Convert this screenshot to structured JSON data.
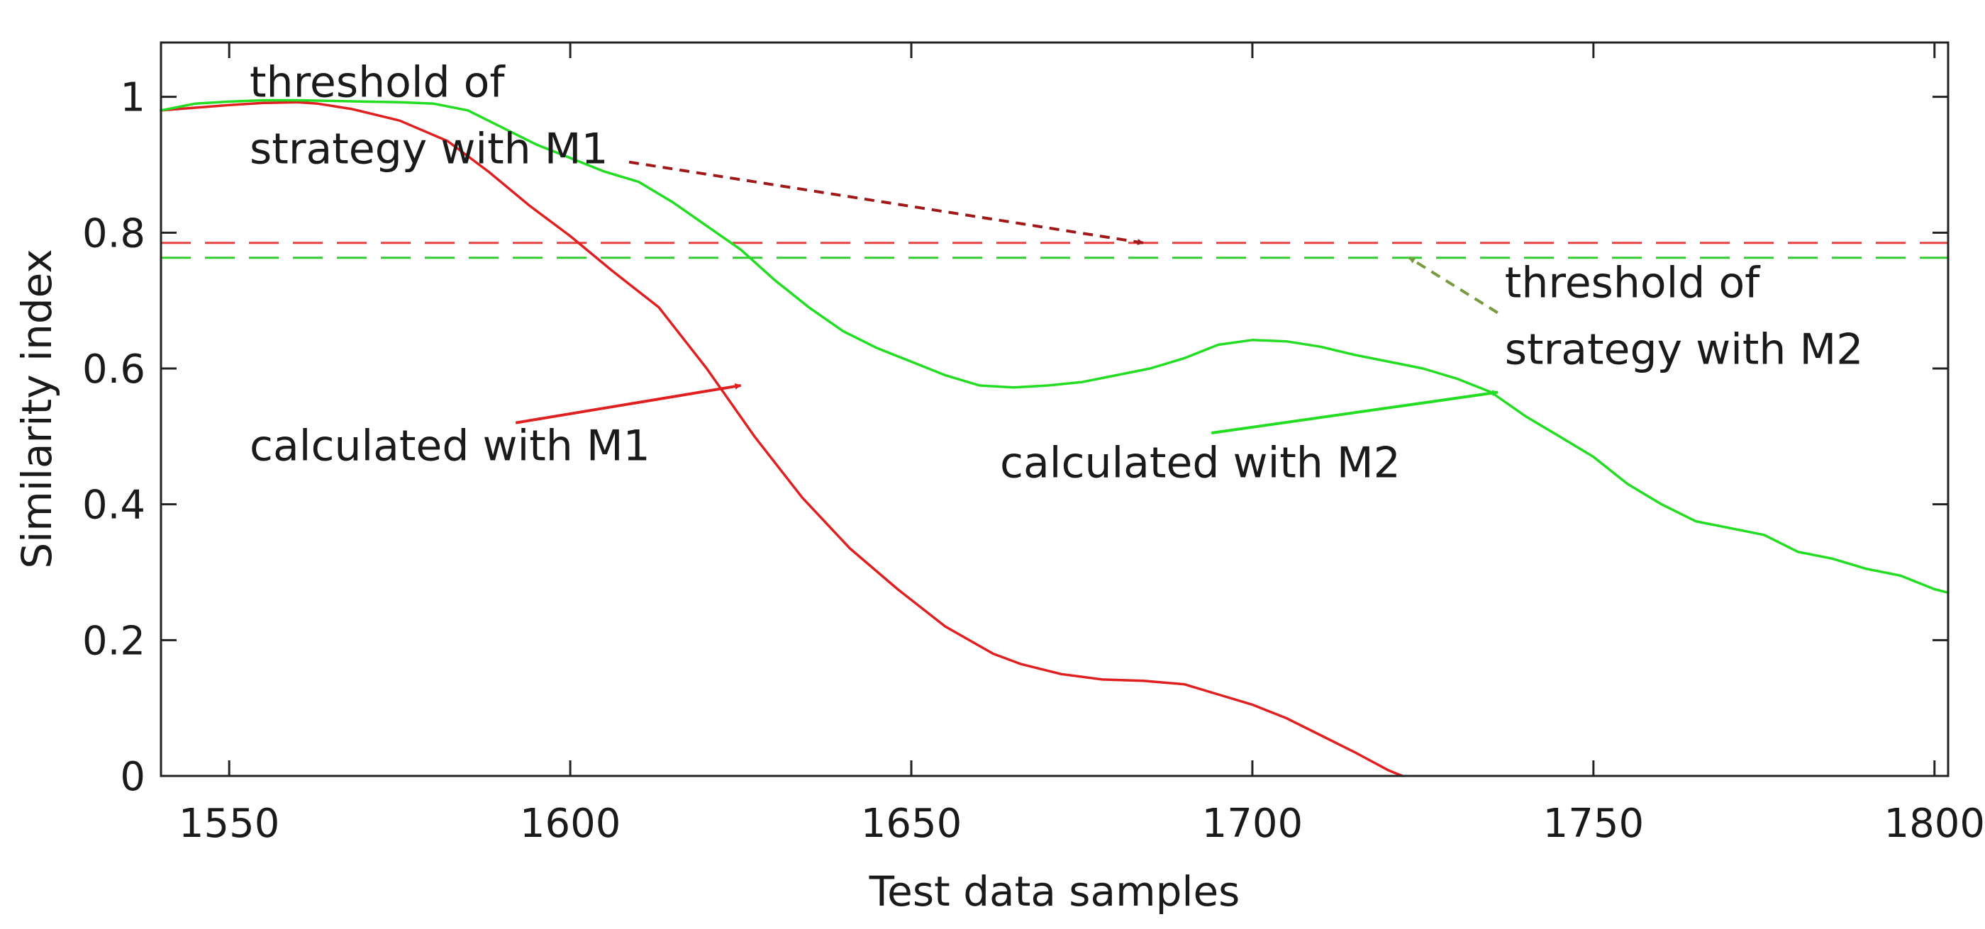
{
  "chart_data": {
    "type": "line",
    "title": "",
    "xlabel": "Test data samples",
    "ylabel": "Similarity index",
    "xlim": [
      1540,
      1802
    ],
    "ylim": [
      0,
      1.08
    ],
    "xticks": [
      1550,
      1600,
      1650,
      1700,
      1750,
      1800
    ],
    "xtick_labels": [
      "1550",
      "1600",
      "1650",
      "1700",
      "1750",
      "1800"
    ],
    "yticks": [
      0,
      0.2,
      0.4,
      0.6,
      0.8,
      1
    ],
    "ytick_labels": [
      "0",
      "0.2",
      "0.4",
      "0.6",
      "0.8",
      "1"
    ],
    "grid": false,
    "colors": {
      "m1": "#e02020",
      "m2": "#22dd22",
      "threshold_m1": "#e84040",
      "threshold_m2": "#33cc33",
      "arrow_threshold_m1": "#a01818",
      "arrow_threshold_m2": "#7a9a40",
      "axis": "#222222"
    },
    "series": [
      {
        "name": "calculated with M1",
        "x": [
          1540,
          1545,
          1550,
          1555,
          1560,
          1563,
          1568,
          1575,
          1582,
          1588,
          1594,
          1600,
          1606,
          1613,
          1620,
          1627,
          1634,
          1641,
          1648,
          1655,
          1662,
          1666,
          1672,
          1678,
          1684,
          1690,
          1695,
          1700,
          1705,
          1710,
          1715,
          1720,
          1722
        ],
        "y": [
          0.98,
          0.984,
          0.988,
          0.991,
          0.992,
          0.99,
          0.982,
          0.965,
          0.935,
          0.89,
          0.84,
          0.795,
          0.745,
          0.69,
          0.6,
          0.5,
          0.41,
          0.335,
          0.275,
          0.22,
          0.18,
          0.165,
          0.15,
          0.142,
          0.14,
          0.135,
          0.12,
          0.105,
          0.085,
          0.06,
          0.035,
          0.008,
          0
        ]
      },
      {
        "name": "calculated with M2",
        "x": [
          1540,
          1545,
          1550,
          1555,
          1560,
          1565,
          1570,
          1575,
          1580,
          1585,
          1590,
          1595,
          1600,
          1605,
          1610,
          1615,
          1620,
          1625,
          1630,
          1635,
          1640,
          1645,
          1650,
          1655,
          1660,
          1665,
          1670,
          1675,
          1680,
          1685,
          1690,
          1695,
          1700,
          1705,
          1710,
          1715,
          1720,
          1725,
          1730,
          1735,
          1740,
          1745,
          1750,
          1755,
          1760,
          1765,
          1770,
          1775,
          1780,
          1785,
          1790,
          1795,
          1800,
          1802
        ],
        "y": [
          0.98,
          0.99,
          0.993,
          0.995,
          0.995,
          0.994,
          0.993,
          0.992,
          0.99,
          0.98,
          0.955,
          0.93,
          0.91,
          0.89,
          0.875,
          0.845,
          0.81,
          0.775,
          0.73,
          0.69,
          0.655,
          0.63,
          0.61,
          0.59,
          0.575,
          0.572,
          0.575,
          0.58,
          0.59,
          0.6,
          0.615,
          0.635,
          0.642,
          0.64,
          0.632,
          0.62,
          0.61,
          0.6,
          0.585,
          0.565,
          0.53,
          0.5,
          0.47,
          0.43,
          0.4,
          0.375,
          0.365,
          0.355,
          0.33,
          0.32,
          0.305,
          0.295,
          0.275,
          0.27
        ]
      }
    ],
    "thresholds": [
      {
        "name": "threshold of strategy with M1",
        "y": 0.785,
        "style": "dashed"
      },
      {
        "name": "threshold of strategy with M2",
        "y": 0.763,
        "style": "dashed"
      }
    ],
    "annotations": [
      {
        "id": "threshold-m1",
        "lines": [
          "threshold of",
          "strategy with M1"
        ],
        "text_x": 1553,
        "text_y": 1.0,
        "arrow_to": [
          1684,
          0.785
        ],
        "style": "dashed"
      },
      {
        "id": "threshold-m2",
        "lines": [
          "threshold of",
          "strategy with M2"
        ],
        "text_x": 1737,
        "text_y": 0.705,
        "arrow_to": [
          1723,
          0.763
        ],
        "style": "dashed"
      },
      {
        "id": "m1",
        "lines": [
          "calculated with M1"
        ],
        "text_x": 1553,
        "text_y": 0.465,
        "arrow_from": [
          1592,
          0.52
        ],
        "arrow_to": [
          1625,
          0.575
        ],
        "style": "solid"
      },
      {
        "id": "m2",
        "lines": [
          "calculated with M2"
        ],
        "text_x": 1663,
        "text_y": 0.44,
        "arrow_from": [
          1694,
          0.505
        ],
        "arrow_to": [
          1736,
          0.565
        ],
        "style": "solid"
      }
    ]
  }
}
